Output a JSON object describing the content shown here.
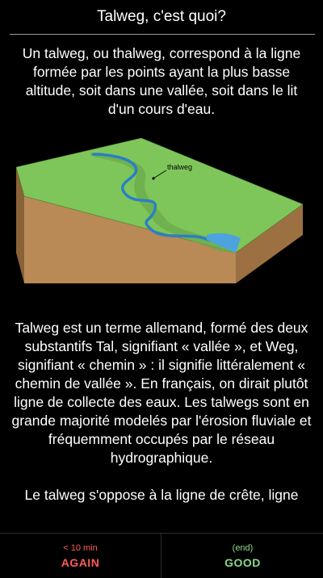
{
  "header": {
    "title": "Talweg, c'est quoi?"
  },
  "content": {
    "paragraph1": "Un talweg, ou thalweg, correspond à la ligne formée par les points ayant la plus basse altitude, soit dans une vallée, soit dans le lit d'un cours d'eau.",
    "figure": {
      "label": "thalweg"
    },
    "paragraph2": "Talweg est un terme allemand, formé des deux substantifs Tal, signifiant « vallée », et Weg, signifiant « chemin » : il signifie littéralement « chemin de vallée ». En français, on dirait plutôt ligne de collecte des eaux. Les talwegs sont en grande majorité modelés par l'érosion fluviale et fréquemment occupés par le réseau hydrographique.",
    "paragraph3": "Le talweg s'oppose à la ligne de crête, ligne"
  },
  "buttons": {
    "again": {
      "interval": "< 10 min",
      "label": "AGAIN"
    },
    "good": {
      "interval": "(end)",
      "label": "GOOD"
    }
  },
  "colors": {
    "again": "#ff5a5a",
    "good": "#8bd88b",
    "terrain_top": "#7fc65a",
    "terrain_side": "#b98a55",
    "river": "#2b7fc4"
  }
}
